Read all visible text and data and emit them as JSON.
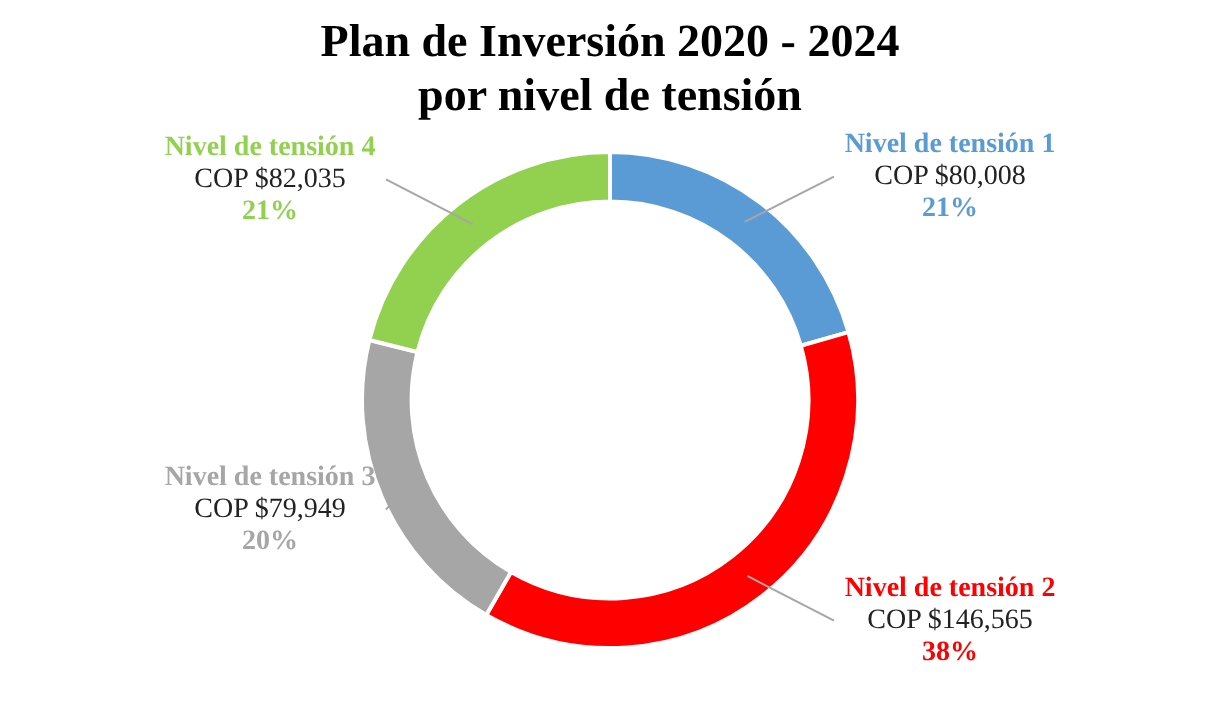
{
  "chart_data": {
    "type": "donut",
    "title": "Plan de Inversión 2020 - 2024\npor nivel de tensión",
    "categories": [
      "Nivel de tensión 1",
      "Nivel de tensión 2",
      "Nivel de tensión 3",
      "Nivel de tensión 4"
    ],
    "values": [
      80008,
      146565,
      79949,
      82035
    ],
    "colors": [
      "#5b9bd5",
      "#ff0000",
      "#a6a6a6",
      "#92d050"
    ],
    "value_labels": [
      "COP $80,008",
      "COP $146,565",
      "COP $79,949",
      "COP $82,035"
    ],
    "annotations": [
      {
        "text": "21%",
        "x": "Nivel de tensión 1"
      },
      {
        "text": "38%",
        "x": "Nivel de tensión 2"
      },
      {
        "text": "20%",
        "x": "Nivel de tensión 3"
      },
      {
        "text": "21%",
        "x": "Nivel de tensión 4"
      }
    ],
    "legend": false
  }
}
